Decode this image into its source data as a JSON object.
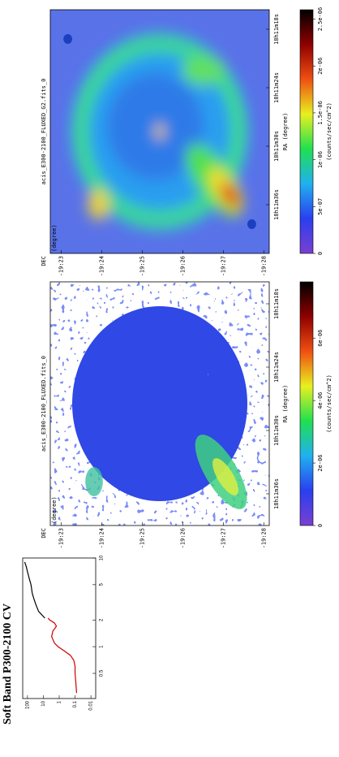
{
  "header": "Soft Band P300-2100 CV",
  "spectrum": {
    "type": "line",
    "log_x": true,
    "log_y": true,
    "xlim": [
      0.26,
      10
    ],
    "ylim": [
      0.005,
      200
    ],
    "xticks": [
      0.5,
      1,
      2,
      5,
      10
    ],
    "yticks": [
      0.01,
      0.1,
      1,
      10,
      100
    ],
    "series": [
      {
        "color": "#cc0000",
        "x": [
          0.3,
          0.4,
          0.5,
          0.6,
          0.7,
          0.8,
          0.9,
          1.0,
          1.1,
          1.3,
          1.5,
          1.7,
          1.85,
          2.0,
          2.1
        ],
        "values": [
          0.08,
          0.09,
          0.1,
          0.1,
          0.12,
          0.2,
          0.5,
          1.2,
          2,
          3,
          2.5,
          1.5,
          2,
          4,
          5
        ]
      },
      {
        "color": "#000000",
        "x": [
          2.1,
          2.5,
          3,
          3.5,
          4,
          5,
          6,
          7,
          8,
          9
        ],
        "values": [
          8,
          20,
          30,
          40,
          50,
          60,
          80,
          100,
          120,
          150
        ]
      }
    ]
  },
  "panels": [
    {
      "title": "acis_E300-2100_FLUXED.fits_0",
      "dec_label": "DEC",
      "dec_unit": "(degree)",
      "dec_ticks": [
        "-19:23",
        "-19:24",
        "-19:25",
        "-19:26",
        "-19:27",
        "-19:28"
      ],
      "ra_ticks": [
        "18h11m36s",
        "18h11m30s",
        "18h11m24s",
        "18h11m18s"
      ],
      "ra_label": "RA (degree)",
      "colorbar": {
        "label": "(counts/sec/cm^2)",
        "clim": [
          0,
          7.8e-06
        ],
        "ticks": [
          0,
          {
            "value": 2e-06,
            "label": "2e-06"
          },
          {
            "value": 4e-06,
            "label": "4e-06"
          },
          {
            "value": 6e-06,
            "label": "6e-06"
          }
        ],
        "colormap": [
          "#7a3fd0",
          "#2a3ff0",
          "#20b0f0",
          "#20e050",
          "#e8f020",
          "#f05010",
          "#900000",
          "#000000"
        ]
      }
    },
    {
      "title": "acis_E300-2100_FLUXED_G2.fits_0",
      "dec_label": "DEC",
      "dec_unit": "(degree)",
      "dec_ticks": [
        "-19:23",
        "-19:24",
        "-19:25",
        "-19:26",
        "-19:27",
        "-19:28"
      ],
      "ra_ticks": [
        "18h11m36s",
        "18h11m30s",
        "18h11m24s",
        "18h11m18s"
      ],
      "ra_label": "RA (degree)",
      "colorbar": {
        "label": "(counts/sec/cm^2)",
        "clim": [
          0,
          2.6e-06
        ],
        "ticks": [
          0,
          {
            "value": 5e-07,
            "label": "5e-07"
          },
          {
            "value": 1e-06,
            "label": "1e-06"
          },
          {
            "value": 1.5e-06,
            "label": "1.5e-06"
          },
          {
            "value": 2e-06,
            "label": "2e-06"
          },
          {
            "value": 2.5e-06,
            "label": "2.5e-06"
          }
        ],
        "colormap": [
          "#7a3fd0",
          "#2a3ff0",
          "#20b0f0",
          "#20e050",
          "#e8f020",
          "#f05010",
          "#900000",
          "#000000"
        ]
      }
    }
  ]
}
